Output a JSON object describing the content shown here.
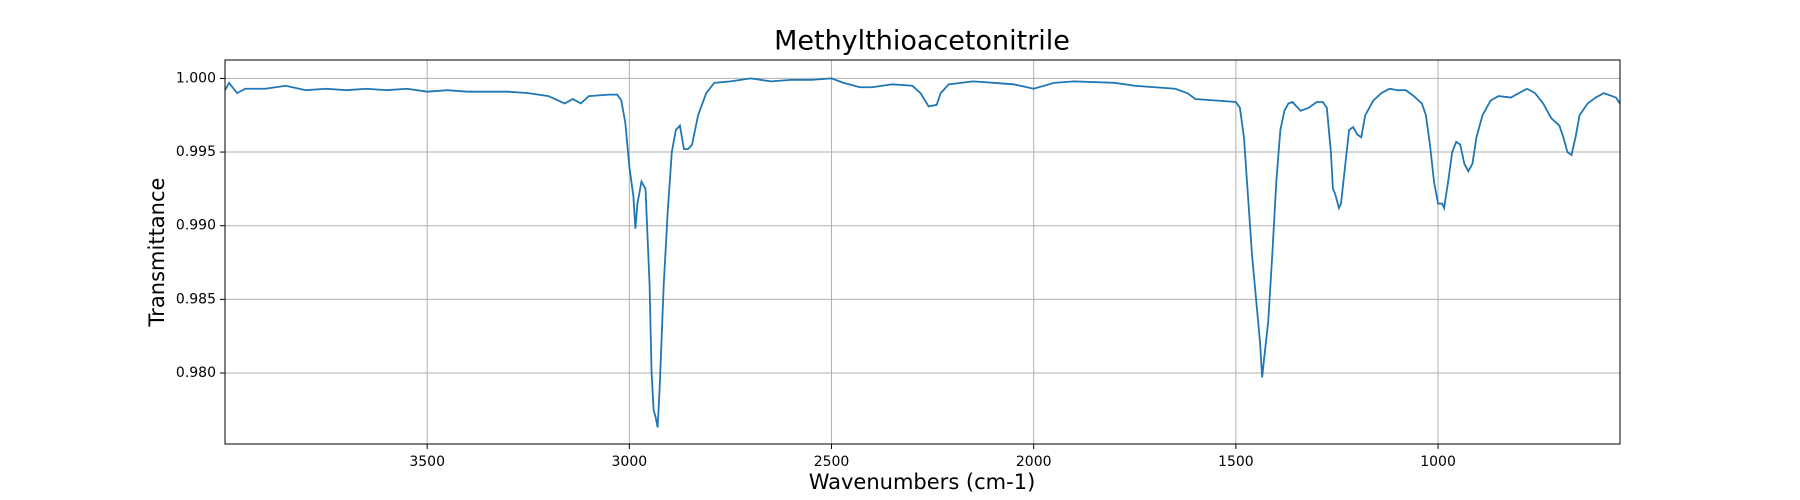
{
  "chart_data": {
    "type": "line",
    "title": "Methylthioacetonitrile",
    "x_label": "Wavenumbers (cm-1)",
    "y_label": "Transmittance",
    "color": "#1f77b4",
    "grid": true,
    "xlim": [
      4000,
      550
    ],
    "ylim": [
      0.97518,
      1.00125
    ],
    "xticks": [
      3500,
      3000,
      2500,
      2000,
      1500,
      1000
    ],
    "yticks": [
      {
        "value": 0.98,
        "label": "0.980"
      },
      {
        "value": 0.985,
        "label": "0.985"
      },
      {
        "value": 0.99,
        "label": "0.990"
      },
      {
        "value": 0.995,
        "label": "0.995"
      },
      {
        "value": 1.0,
        "label": "1.000"
      }
    ],
    "x": [
      4000,
      3990,
      3970,
      3950,
      3900,
      3850,
      3800,
      3750,
      3700,
      3650,
      3600,
      3550,
      3500,
      3450,
      3400,
      3350,
      3300,
      3250,
      3200,
      3160,
      3140,
      3120,
      3100,
      3050,
      3030,
      3020,
      3010,
      3000,
      2990,
      2985,
      2980,
      2970,
      2960,
      2950,
      2945,
      2940,
      2935,
      2930,
      2925,
      2915,
      2905,
      2895,
      2885,
      2875,
      2865,
      2855,
      2845,
      2830,
      2810,
      2790,
      2750,
      2700,
      2650,
      2600,
      2550,
      2500,
      2470,
      2430,
      2400,
      2350,
      2300,
      2280,
      2260,
      2240,
      2230,
      2210,
      2150,
      2100,
      2050,
      2000,
      1950,
      1900,
      1800,
      1750,
      1700,
      1650,
      1620,
      1600,
      1550,
      1500,
      1490,
      1480,
      1470,
      1460,
      1450,
      1440,
      1435,
      1430,
      1420,
      1410,
      1400,
      1390,
      1380,
      1370,
      1360,
      1340,
      1320,
      1300,
      1285,
      1275,
      1265,
      1260,
      1255,
      1245,
      1240,
      1230,
      1220,
      1210,
      1200,
      1190,
      1180,
      1160,
      1140,
      1120,
      1100,
      1080,
      1060,
      1040,
      1030,
      1020,
      1010,
      1000,
      990,
      985,
      975,
      965,
      955,
      945,
      935,
      925,
      915,
      905,
      890,
      870,
      850,
      820,
      800,
      780,
      760,
      740,
      720,
      700,
      690,
      680,
      670,
      660,
      650,
      630,
      610,
      590,
      570,
      560,
      550
    ],
    "values": [
      0.9992,
      0.9997,
      0.999,
      0.9993,
      0.9993,
      0.9995,
      0.9992,
      0.9993,
      0.9992,
      0.9993,
      0.9992,
      0.9993,
      0.9991,
      0.9992,
      0.9991,
      0.9991,
      0.9991,
      0.999,
      0.9988,
      0.9983,
      0.9986,
      0.9983,
      0.9988,
      0.9989,
      0.9989,
      0.9985,
      0.997,
      0.994,
      0.992,
      0.9898,
      0.9915,
      0.993,
      0.9925,
      0.986,
      0.98,
      0.9775,
      0.977,
      0.9763,
      0.979,
      0.986,
      0.991,
      0.995,
      0.9965,
      0.9968,
      0.9952,
      0.9952,
      0.9955,
      0.9975,
      0.999,
      0.9997,
      0.9998,
      1.0,
      0.9998,
      0.9999,
      0.9999,
      1.0,
      0.9997,
      0.9994,
      0.9994,
      0.9996,
      0.9995,
      0.999,
      0.9981,
      0.9982,
      0.999,
      0.9996,
      0.9998,
      0.9997,
      0.9996,
      0.9993,
      0.9997,
      0.9998,
      0.9997,
      0.9995,
      0.9994,
      0.9993,
      0.999,
      0.9986,
      0.9985,
      0.9984,
      0.998,
      0.996,
      0.992,
      0.988,
      0.985,
      0.982,
      0.9797,
      0.981,
      0.9835,
      0.988,
      0.993,
      0.9965,
      0.9978,
      0.9983,
      0.9984,
      0.9978,
      0.998,
      0.9984,
      0.9984,
      0.998,
      0.995,
      0.9925,
      0.9922,
      0.9912,
      0.9915,
      0.994,
      0.9965,
      0.9967,
      0.9962,
      0.996,
      0.9975,
      0.9985,
      0.999,
      0.9993,
      0.9992,
      0.9992,
      0.9988,
      0.9983,
      0.9975,
      0.9955,
      0.993,
      0.9915,
      0.9915,
      0.9912,
      0.993,
      0.995,
      0.9957,
      0.9955,
      0.9942,
      0.9937,
      0.9942,
      0.996,
      0.9975,
      0.9985,
      0.9988,
      0.9987,
      0.999,
      0.9993,
      0.999,
      0.9983,
      0.9973,
      0.9968,
      0.996,
      0.995,
      0.9948,
      0.996,
      0.9975,
      0.9983,
      0.9987,
      0.999,
      0.9988,
      0.9987,
      0.9983
    ]
  }
}
